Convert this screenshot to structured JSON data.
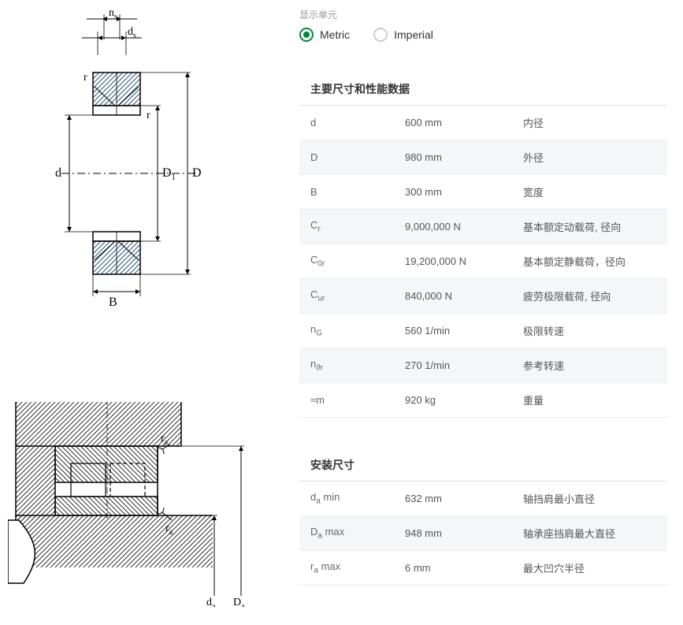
{
  "units": {
    "label": "显示单元",
    "options": [
      "Metric",
      "Imperial"
    ],
    "selected": "Metric"
  },
  "sections": [
    {
      "title": "主要尺寸和性能数据",
      "rows": [
        {
          "symbol": "d",
          "sub": "",
          "suffix": "",
          "value": "600 mm",
          "desc": "内径"
        },
        {
          "symbol": "D",
          "sub": "",
          "suffix": "",
          "value": "980 mm",
          "desc": "外径"
        },
        {
          "symbol": "B",
          "sub": "",
          "suffix": "",
          "value": "300 mm",
          "desc": "宽度"
        },
        {
          "symbol": "C",
          "sub": "r",
          "suffix": "",
          "value": "9,000,000 N",
          "desc": "基本额定动载荷, 径向"
        },
        {
          "symbol": "C",
          "sub": "0r",
          "suffix": "",
          "value": "19,200,000 N",
          "desc": "基本额定静载荷，径向"
        },
        {
          "symbol": "C",
          "sub": "ur",
          "suffix": "",
          "value": "840,000 N",
          "desc": "疲劳极限载荷, 径向"
        },
        {
          "symbol": "n",
          "sub": "G",
          "suffix": "",
          "value": "560 1/min",
          "desc": "极限转速"
        },
        {
          "symbol": "n",
          "sub": "ϑr",
          "suffix": "",
          "value": "270 1/min",
          "desc": "参考转速"
        },
        {
          "symbol": "≈m",
          "sub": "",
          "suffix": "",
          "value": "920 kg",
          "desc": "重量"
        }
      ]
    },
    {
      "title": "安装尺寸",
      "rows": [
        {
          "symbol": "d",
          "sub": "a",
          "suffix": " min",
          "value": "632 mm",
          "desc": "轴挡肩最小直径"
        },
        {
          "symbol": "D",
          "sub": "a",
          "suffix": " max",
          "value": "948 mm",
          "desc": "轴承座挡肩最大直径"
        },
        {
          "symbol": "r",
          "sub": "a",
          "suffix": " max",
          "value": "6 mm",
          "desc": "最大凹穴半径"
        }
      ]
    }
  ],
  "diagram1": {
    "labels": {
      "ns": "n",
      "ns_sub": "s",
      "ds": "d",
      "ds_sub": "s",
      "r1": "r",
      "r2": "r",
      "d": "d",
      "D1": "D",
      "D1_sub": "1",
      "D": "D",
      "B": "B"
    },
    "colors": {
      "stroke": "#000000",
      "fill_hatch": "#4a6a8a",
      "center": "#000000"
    }
  },
  "diagram2": {
    "labels": {
      "ra": "r",
      "ra_sub": "a",
      "da": "d",
      "da_sub": "a",
      "Da": "D",
      "Da_sub": "a"
    },
    "colors": {
      "stroke": "#000000",
      "hatch": "#333333"
    }
  }
}
